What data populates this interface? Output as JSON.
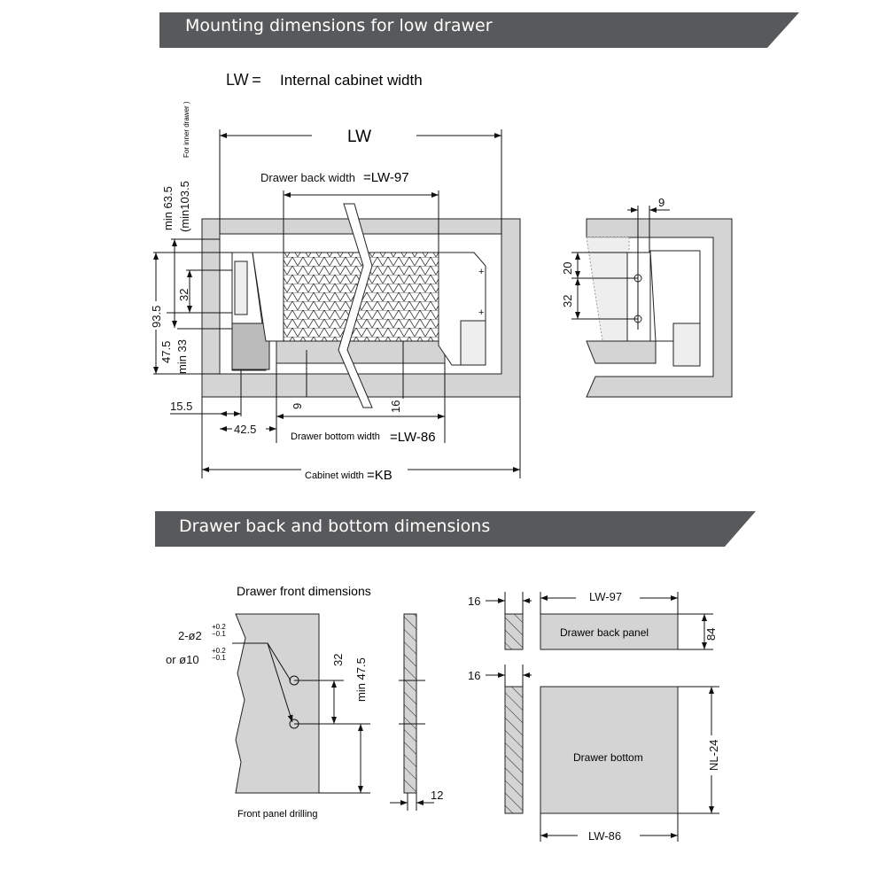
{
  "section1": {
    "title": "Mounting dimensions for low drawer"
  },
  "definition": {
    "abbr": "LW =",
    "text": "Internal cabinet width"
  },
  "front_view": {
    "lw": "LW",
    "back_width_label": "Drawer back width",
    "back_width_value": "=LW-97",
    "min635": "min 63.5",
    "min1035": "(min103.5",
    "inner_drawer": "For inner drawer )",
    "d32": "32",
    "d935": "93.5",
    "d475": "47.5",
    "min33": "min 33",
    "d155": "15.5",
    "d425": "42.5",
    "d9": "9",
    "d16": "16",
    "bottom_width_label": "Drawer bottom width",
    "bottom_width_value": "=LW-86",
    "cabinet_width_label": "Cabinet width",
    "cabinet_width_value": "=KB"
  },
  "side_view": {
    "d9": "9",
    "d20": "20",
    "d32": "32"
  },
  "section2": {
    "title": "Drawer back and bottom dimensions"
  },
  "drawer_front": {
    "title": "Drawer front dimensions",
    "hole1": "2-ø2",
    "tol_plus": "+0.2",
    "tol_minus": "−0.1",
    "hole2": "or  ø10",
    "d32": "32",
    "min475": "min 47.5",
    "d12": "12",
    "caption": "Front panel drilling"
  },
  "panels": {
    "d16a": "16",
    "lw97": "LW-97",
    "back_panel": "Drawer back panel",
    "d84": "84",
    "d16b": "16",
    "bottom": "Drawer bottom",
    "nl24": "NL-24",
    "lw86": "LW-86"
  }
}
